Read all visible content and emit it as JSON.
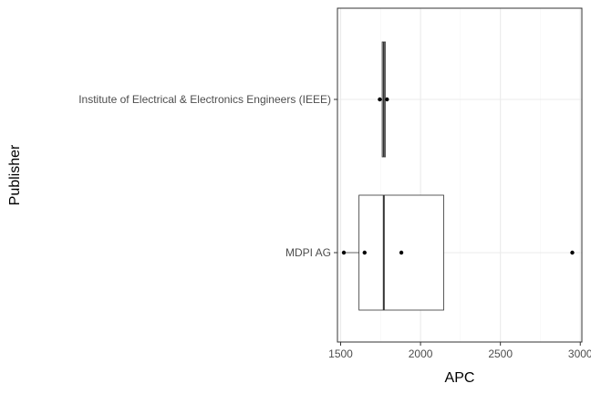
{
  "chart_data": {
    "type": "boxplot",
    "orientation": "horizontal",
    "xlabel": "APC",
    "ylabel": "Publisher",
    "xlim": [
      1480,
      3010
    ],
    "x_ticks": [
      1500,
      2000,
      2500,
      3000
    ],
    "x_tick_labels": [
      "1500",
      "2000",
      "2500",
      "3000"
    ],
    "grid": true,
    "categories": [
      "Institute of Electrical & Electronics Engineers (IEEE)",
      "MDPI AG"
    ],
    "boxes": [
      {
        "category": "Institute of Electrical & Electronics Engineers (IEEE)",
        "min": 1745,
        "q1": 1760,
        "median": 1770,
        "q3": 1780,
        "max": 1790,
        "points": [
          1745,
          1790
        ]
      },
      {
        "category": "MDPI AG",
        "min": 1520,
        "q1": 1615,
        "median": 1770,
        "q3": 2145,
        "max": 2145,
        "points": [
          1520,
          1650,
          1880,
          2950
        ]
      }
    ],
    "colors": {
      "panel_border": "#333333",
      "grid_major": "#ebebeb",
      "grid_minor": "#f5f5f5",
      "box_line": "#333333",
      "median": "#333333",
      "point": "#000000",
      "tick_text": "#4d4d4d"
    }
  }
}
